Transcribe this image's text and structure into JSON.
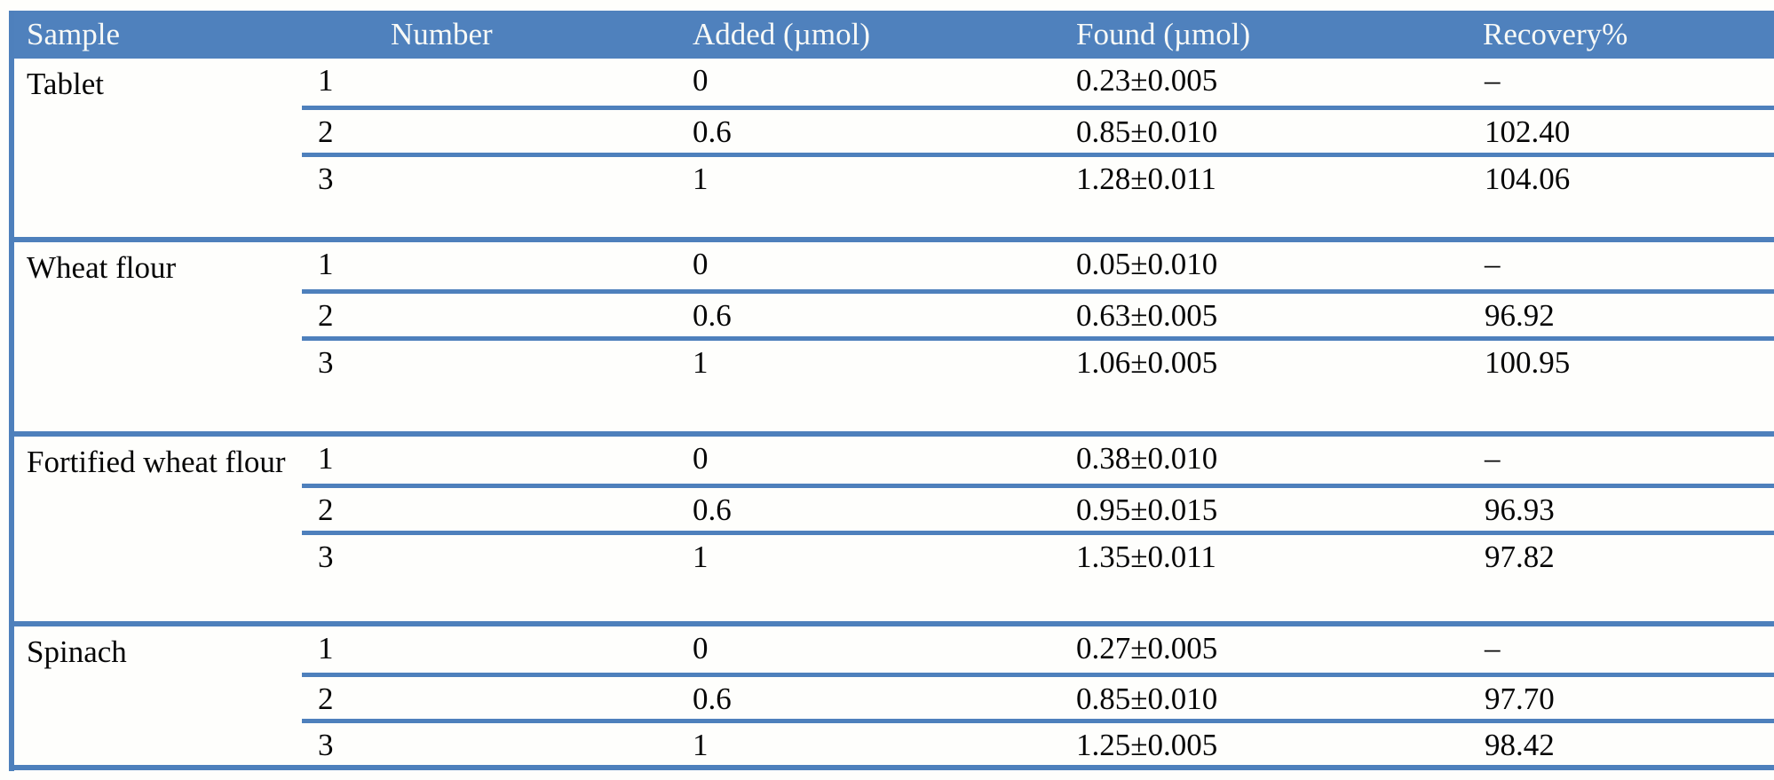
{
  "table": {
    "colors": {
      "header_bg": "#4f81bd",
      "line": "#4e80bc",
      "header_text": "#f7f9f7",
      "body_text": "#060606"
    },
    "columns": [
      "Sample",
      "Number",
      "Added (µmol)",
      "Found (µmol)",
      "Recovery%"
    ],
    "groups": [
      {
        "sample": "Tablet",
        "rows": [
          {
            "number": "1",
            "added": "0",
            "found": "0.23±0.005",
            "recovery": "–"
          },
          {
            "number": "2",
            "added": "0.6",
            "found": "0.85±0.010",
            "recovery": "102.40"
          },
          {
            "number": "3",
            "added": "1",
            "found": "1.28±0.011",
            "recovery": "104.06"
          }
        ]
      },
      {
        "sample": "Wheat flour",
        "rows": [
          {
            "number": "1",
            "added": "0",
            "found": "0.05±0.010",
            "recovery": "–"
          },
          {
            "number": "2",
            "added": "0.6",
            "found": "0.63±0.005",
            "recovery": "96.92"
          },
          {
            "number": "3",
            "added": "1",
            "found": "1.06±0.005",
            "recovery": "100.95"
          }
        ]
      },
      {
        "sample": "Fortified wheat flour",
        "rows": [
          {
            "number": "1",
            "added": "0",
            "found": "0.38±0.010",
            "recovery": "–"
          },
          {
            "number": "2",
            "added": "0.6",
            "found": "0.95±0.015",
            "recovery": "96.93"
          },
          {
            "number": "3",
            "added": "1",
            "found": "1.35±0.011",
            "recovery": "97.82"
          }
        ]
      },
      {
        "sample": "Spinach",
        "rows": [
          {
            "number": "1",
            "added": "0",
            "found": "0.27±0.005",
            "recovery": "–"
          },
          {
            "number": "2",
            "added": "0.6",
            "found": "0.85±0.010",
            "recovery": "97.70"
          },
          {
            "number": "3",
            "added": "1",
            "found": "1.25±0.005",
            "recovery": "98.42"
          }
        ]
      }
    ]
  }
}
